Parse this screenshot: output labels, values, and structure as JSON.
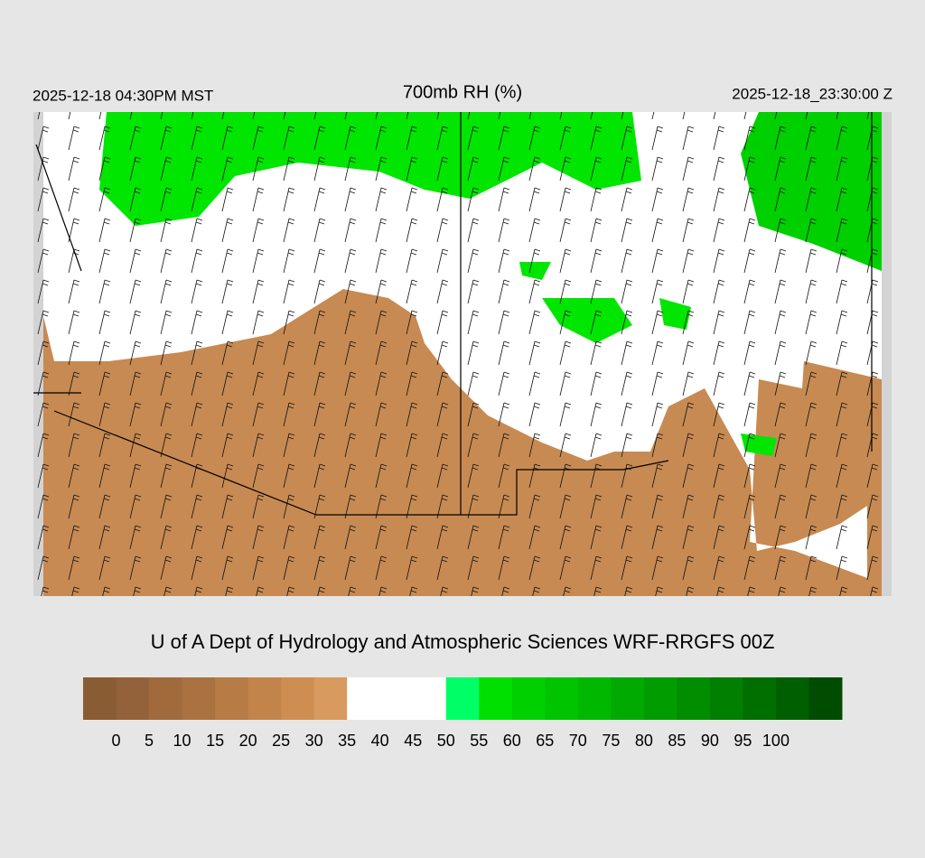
{
  "header": {
    "local_time": "2025-12-18 04:30PM MST",
    "title": "700mb RH (%)",
    "valid_time": "2025-12-18_23:30:00 Z"
  },
  "credit": "U of A Dept of Hydrology and Atmospheric Sciences WRF-RRGFS 00Z",
  "colorbar": {
    "ticks": [
      0,
      5,
      10,
      15,
      20,
      25,
      30,
      35,
      40,
      45,
      50,
      55,
      60,
      65,
      70,
      75,
      80,
      85,
      90,
      95,
      100
    ],
    "colors": [
      "#8a5c33",
      "#94623a",
      "#a06a3d",
      "#ab7241",
      "#b77b46",
      "#c2844b",
      "#ce8d51",
      "#d89a5e",
      "#ffffff",
      "#ffffff",
      "#ffffff",
      "#00ff66",
      "#00e000",
      "#00d000",
      "#00c400",
      "#00b800",
      "#00aa00",
      "#009c00",
      "#008e00",
      "#007f00",
      "#006f00",
      "#005f00",
      "#004c00"
    ]
  }
}
